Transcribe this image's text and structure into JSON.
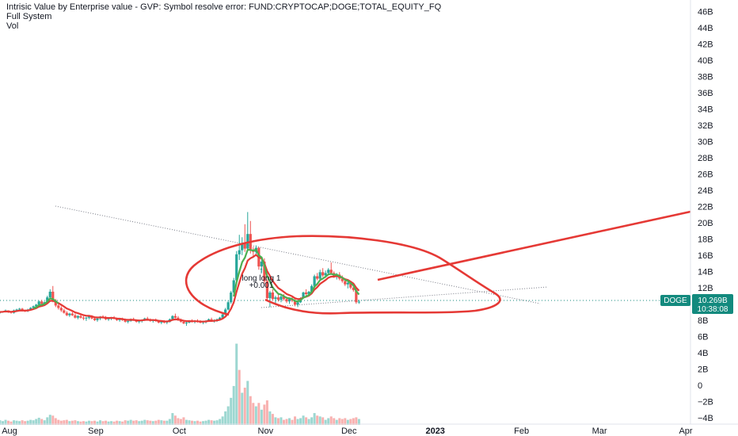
{
  "header": {
    "line1": "Intrisic Value by Enterprise value - GVP: Symbol resolve error: FUND:CRYPTOCAP;DOGE;TOTAL_EQUITY_FQ",
    "line2": "Full System",
    "line3": "Vol"
  },
  "colors": {
    "up": "#26a69a",
    "down": "#ef5350",
    "ma_green": "#4caf50",
    "ma_red": "#e53935",
    "drawing_red": "#e53935",
    "price_tag": "#138a7e",
    "trend_line": "#787b86"
  },
  "price_tag": {
    "symbol": "DOGE",
    "value": "10.269B",
    "time": "10:38:08"
  },
  "signal": {
    "label": "long long 1",
    "value": "+0.001",
    "marker": "↑"
  },
  "chart_data": {
    "type": "candlestick",
    "title": "",
    "y_ticks": [
      "46B",
      "44B",
      "42B",
      "40B",
      "38B",
      "36B",
      "34B",
      "32B",
      "30B",
      "28B",
      "26B",
      "24B",
      "22B",
      "20B",
      "18B",
      "16B",
      "14B",
      "12B",
      "10B",
      "8B",
      "6B",
      "4B",
      "2B",
      "0",
      "−2B",
      "−4B"
    ],
    "y_tick_values": [
      46,
      44,
      42,
      40,
      38,
      36,
      34,
      32,
      30,
      28,
      26,
      24,
      22,
      20,
      18,
      16,
      14,
      12,
      10,
      8,
      6,
      4,
      2,
      0,
      -2,
      -4
    ],
    "ylim": [
      -4.8,
      47.4
    ],
    "x_ticks": [
      {
        "label": "Aug",
        "date": "2022-08-01"
      },
      {
        "label": "Sep",
        "date": "2022-09-01"
      },
      {
        "label": "Oct",
        "date": "2022-10-01"
      },
      {
        "label": "Nov",
        "date": "2022-11-01"
      },
      {
        "label": "Dec",
        "date": "2022-12-01"
      },
      {
        "label": "2023",
        "date": "2023-01-01",
        "bold": true
      },
      {
        "label": "Feb",
        "date": "2023-02-01"
      },
      {
        "label": "Mar",
        "date": "2023-03-01"
      },
      {
        "label": "Apr",
        "date": "2023-04-01"
      }
    ],
    "xlim": [
      "2022-08-01",
      "2023-04-01"
    ],
    "start_date": "2022-08-01",
    "candles": [
      [
        8.9,
        9.0,
        8.8,
        9.0
      ],
      [
        9.0,
        9.1,
        8.9,
        9.1
      ],
      [
        9.1,
        9.3,
        9.0,
        9.2
      ],
      [
        9.2,
        9.2,
        8.9,
        9.0
      ],
      [
        9.0,
        9.1,
        8.8,
        8.9
      ],
      [
        8.9,
        9.3,
        8.8,
        9.2
      ],
      [
        9.2,
        9.4,
        9.0,
        9.3
      ],
      [
        9.3,
        9.5,
        9.2,
        9.4
      ],
      [
        9.4,
        9.5,
        9.1,
        9.2
      ],
      [
        9.2,
        9.3,
        9.0,
        9.1
      ],
      [
        9.1,
        9.4,
        9.0,
        9.3
      ],
      [
        9.3,
        9.6,
        9.2,
        9.5
      ],
      [
        9.5,
        9.8,
        9.3,
        9.7
      ],
      [
        9.7,
        10.0,
        9.5,
        9.9
      ],
      [
        9.9,
        10.4,
        9.8,
        10.3
      ],
      [
        10.3,
        10.5,
        9.9,
        10.0
      ],
      [
        10.0,
        10.3,
        9.8,
        10.2
      ],
      [
        10.2,
        11.0,
        10.1,
        10.8
      ],
      [
        10.8,
        11.8,
        10.6,
        11.5
      ],
      [
        11.5,
        12.2,
        10.2,
        10.4
      ],
      [
        10.4,
        10.6,
        9.6,
        9.8
      ],
      [
        9.8,
        10.0,
        9.3,
        9.5
      ],
      [
        9.5,
        9.7,
        9.0,
        9.2
      ],
      [
        9.2,
        9.4,
        8.8,
        8.9
      ],
      [
        8.9,
        9.1,
        8.5,
        8.6
      ],
      [
        8.6,
        8.9,
        8.4,
        8.8
      ],
      [
        8.8,
        9.0,
        8.5,
        8.6
      ],
      [
        8.6,
        8.8,
        8.2,
        8.3
      ],
      [
        8.3,
        8.6,
        8.1,
        8.5
      ],
      [
        8.5,
        8.7,
        8.2,
        8.3
      ],
      [
        8.3,
        8.5,
        8.0,
        8.2
      ],
      [
        8.2,
        8.4,
        7.9,
        8.3
      ],
      [
        8.3,
        8.6,
        8.1,
        8.5
      ],
      [
        8.5,
        8.6,
        8.1,
        8.2
      ],
      [
        8.2,
        8.4,
        7.9,
        8.0
      ],
      [
        8.0,
        8.3,
        7.8,
        8.2
      ],
      [
        8.2,
        8.5,
        8.0,
        8.4
      ],
      [
        8.4,
        8.6,
        8.2,
        8.3
      ],
      [
        8.3,
        8.5,
        8.0,
        8.1
      ],
      [
        8.1,
        8.3,
        7.9,
        8.2
      ],
      [
        8.2,
        8.4,
        8.0,
        8.3
      ],
      [
        8.3,
        8.5,
        8.1,
        8.2
      ],
      [
        8.2,
        8.3,
        7.9,
        8.0
      ],
      [
        8.0,
        8.2,
        7.8,
        8.1
      ],
      [
        8.1,
        8.3,
        7.9,
        8.0
      ],
      [
        8.0,
        8.2,
        7.7,
        7.8
      ],
      [
        7.8,
        8.0,
        7.6,
        7.9
      ],
      [
        7.9,
        8.2,
        7.8,
        8.1
      ],
      [
        8.1,
        8.3,
        7.9,
        8.0
      ],
      [
        8.0,
        8.1,
        7.7,
        7.8
      ],
      [
        7.8,
        8.0,
        7.6,
        7.9
      ],
      [
        7.9,
        8.1,
        7.7,
        8.0
      ],
      [
        8.0,
        8.3,
        7.9,
        8.2
      ],
      [
        8.2,
        8.4,
        8.0,
        8.1
      ],
      [
        8.1,
        8.2,
        7.8,
        7.9
      ],
      [
        7.9,
        8.1,
        7.7,
        8.0
      ],
      [
        8.0,
        8.2,
        7.8,
        7.9
      ],
      [
        7.9,
        8.0,
        7.6,
        7.7
      ],
      [
        7.7,
        7.9,
        7.5,
        7.8
      ],
      [
        7.8,
        8.0,
        7.6,
        7.7
      ],
      [
        7.7,
        7.9,
        7.5,
        7.8
      ],
      [
        7.8,
        8.2,
        7.7,
        8.1
      ],
      [
        8.1,
        8.6,
        8.0,
        8.5
      ],
      [
        8.5,
        8.8,
        8.2,
        8.3
      ],
      [
        8.3,
        8.5,
        7.9,
        8.0
      ],
      [
        8.0,
        8.2,
        7.7,
        7.8
      ],
      [
        7.8,
        8.0,
        7.5,
        7.6
      ],
      [
        7.6,
        7.8,
        7.3,
        7.7
      ],
      [
        7.7,
        8.0,
        7.6,
        7.9
      ],
      [
        7.9,
        8.1,
        7.7,
        7.8
      ],
      [
        7.8,
        8.0,
        7.6,
        7.9
      ],
      [
        7.9,
        8.1,
        7.7,
        7.8
      ],
      [
        7.8,
        8.0,
        7.6,
        7.7
      ],
      [
        7.7,
        7.9,
        7.5,
        7.8
      ],
      [
        7.8,
        8.0,
        7.6,
        7.9
      ],
      [
        7.9,
        8.2,
        7.8,
        8.1
      ],
      [
        8.1,
        8.3,
        7.8,
        7.9
      ],
      [
        7.9,
        8.1,
        7.7,
        8.0
      ],
      [
        8.0,
        8.2,
        7.8,
        8.1
      ],
      [
        8.1,
        8.4,
        8.0,
        8.3
      ],
      [
        8.3,
        8.8,
        8.2,
        8.7
      ],
      [
        8.7,
        9.5,
        8.6,
        9.3
      ],
      [
        9.3,
        10.4,
        9.2,
        10.2
      ],
      [
        10.2,
        11.6,
        10.0,
        11.4
      ],
      [
        11.4,
        13.2,
        11.2,
        12.9
      ],
      [
        12.9,
        16.5,
        12.6,
        16.1
      ],
      [
        16.1,
        18.5,
        15.4,
        16.6
      ],
      [
        16.6,
        18.2,
        16.0,
        17.5
      ],
      [
        17.5,
        19.8,
        16.4,
        16.8
      ],
      [
        16.8,
        21.3,
        16.5,
        18.6
      ],
      [
        18.6,
        20.2,
        16.2,
        16.6
      ],
      [
        16.6,
        17.0,
        15.8,
        16.4
      ],
      [
        16.4,
        17.2,
        16.0,
        16.9
      ],
      [
        16.9,
        17.0,
        14.2,
        14.6
      ],
      [
        14.6,
        15.5,
        13.8,
        15.2
      ],
      [
        15.2,
        15.6,
        12.5,
        12.8
      ],
      [
        12.8,
        13.0,
        10.4,
        10.7
      ],
      [
        10.7,
        11.6,
        9.6,
        11.4
      ],
      [
        11.4,
        11.8,
        10.4,
        10.6
      ],
      [
        10.6,
        11.0,
        10.0,
        10.8
      ],
      [
        10.8,
        11.2,
        10.3,
        10.5
      ],
      [
        10.5,
        11.0,
        10.2,
        10.9
      ],
      [
        10.9,
        11.2,
        10.4,
        10.6
      ],
      [
        10.6,
        10.9,
        10.1,
        10.3
      ],
      [
        10.3,
        10.7,
        10.0,
        10.6
      ],
      [
        10.6,
        10.9,
        10.2,
        10.4
      ],
      [
        10.4,
        10.6,
        9.7,
        9.9
      ],
      [
        9.9,
        10.3,
        9.6,
        10.2
      ],
      [
        10.2,
        10.8,
        10.1,
        10.7
      ],
      [
        10.7,
        11.5,
        10.6,
        11.4
      ],
      [
        11.4,
        11.8,
        11.0,
        11.2
      ],
      [
        11.2,
        11.6,
        10.9,
        11.5
      ],
      [
        11.5,
        12.4,
        11.3,
        12.2
      ],
      [
        12.2,
        13.6,
        12.1,
        13.4
      ],
      [
        13.4,
        13.8,
        12.9,
        13.1
      ],
      [
        13.1,
        14.2,
        13.0,
        13.9
      ],
      [
        13.9,
        14.4,
        13.3,
        13.5
      ],
      [
        13.5,
        14.1,
        13.2,
        13.8
      ],
      [
        13.8,
        14.4,
        13.5,
        14.2
      ],
      [
        14.2,
        15.1,
        13.6,
        13.8
      ],
      [
        13.8,
        14.0,
        13.2,
        13.4
      ],
      [
        13.4,
        13.8,
        13.0,
        13.6
      ],
      [
        13.6,
        13.9,
        12.9,
        13.1
      ],
      [
        13.1,
        13.5,
        12.6,
        12.8
      ],
      [
        12.8,
        13.0,
        12.2,
        12.4
      ],
      [
        12.4,
        12.8,
        11.9,
        12.6
      ],
      [
        12.6,
        12.8,
        11.8,
        12.0
      ],
      [
        12.0,
        12.3,
        11.5,
        11.7
      ],
      [
        11.7,
        11.9,
        10.0,
        10.2
      ],
      [
        10.2,
        10.5,
        10.0,
        10.27
      ]
    ],
    "volume": [
      [
        0.55,
        1
      ],
      [
        0.45,
        1
      ],
      [
        0.6,
        1
      ],
      [
        0.5,
        0
      ],
      [
        0.4,
        0
      ],
      [
        0.55,
        1
      ],
      [
        0.5,
        1
      ],
      [
        0.45,
        1
      ],
      [
        0.55,
        0
      ],
      [
        0.45,
        0
      ],
      [
        0.5,
        1
      ],
      [
        0.6,
        1
      ],
      [
        0.55,
        1
      ],
      [
        0.7,
        1
      ],
      [
        0.85,
        1
      ],
      [
        0.7,
        0
      ],
      [
        0.55,
        1
      ],
      [
        0.9,
        1
      ],
      [
        1.2,
        1
      ],
      [
        1.1,
        0
      ],
      [
        0.8,
        0
      ],
      [
        0.6,
        0
      ],
      [
        0.5,
        0
      ],
      [
        0.55,
        0
      ],
      [
        0.6,
        0
      ],
      [
        0.45,
        1
      ],
      [
        0.5,
        0
      ],
      [
        0.55,
        0
      ],
      [
        0.45,
        1
      ],
      [
        0.4,
        0
      ],
      [
        0.45,
        0
      ],
      [
        0.4,
        1
      ],
      [
        0.5,
        1
      ],
      [
        0.45,
        0
      ],
      [
        0.5,
        0
      ],
      [
        0.4,
        1
      ],
      [
        0.55,
        1
      ],
      [
        0.45,
        0
      ],
      [
        0.5,
        0
      ],
      [
        0.4,
        1
      ],
      [
        0.45,
        1
      ],
      [
        0.4,
        0
      ],
      [
        0.5,
        0
      ],
      [
        0.45,
        1
      ],
      [
        0.4,
        0
      ],
      [
        0.55,
        0
      ],
      [
        0.5,
        1
      ],
      [
        0.6,
        1
      ],
      [
        0.5,
        0
      ],
      [
        0.55,
        0
      ],
      [
        0.45,
        1
      ],
      [
        0.5,
        1
      ],
      [
        0.6,
        1
      ],
      [
        0.55,
        0
      ],
      [
        0.5,
        0
      ],
      [
        0.45,
        1
      ],
      [
        0.5,
        0
      ],
      [
        0.6,
        0
      ],
      [
        0.55,
        1
      ],
      [
        0.5,
        0
      ],
      [
        0.5,
        1
      ],
      [
        0.7,
        1
      ],
      [
        1.4,
        1
      ],
      [
        1.1,
        0
      ],
      [
        0.8,
        0
      ],
      [
        0.7,
        0
      ],
      [
        0.9,
        0
      ],
      [
        0.6,
        1
      ],
      [
        0.55,
        1
      ],
      [
        0.5,
        0
      ],
      [
        0.45,
        1
      ],
      [
        0.5,
        0
      ],
      [
        0.4,
        0
      ],
      [
        0.45,
        1
      ],
      [
        0.5,
        1
      ],
      [
        0.6,
        1
      ],
      [
        0.55,
        0
      ],
      [
        0.5,
        1
      ],
      [
        0.55,
        1
      ],
      [
        0.7,
        1
      ],
      [
        1.0,
        1
      ],
      [
        1.6,
        1
      ],
      [
        2.2,
        1
      ],
      [
        3.2,
        1
      ],
      [
        4.6,
        1
      ],
      [
        9.6,
        1
      ],
      [
        6.5,
        0
      ],
      [
        3.8,
        1
      ],
      [
        4.4,
        0
      ],
      [
        5.2,
        1
      ],
      [
        3.4,
        0
      ],
      [
        2.6,
        0
      ],
      [
        2.2,
        1
      ],
      [
        2.6,
        0
      ],
      [
        1.8,
        1
      ],
      [
        2.4,
        0
      ],
      [
        2.9,
        0
      ],
      [
        1.6,
        1
      ],
      [
        1.3,
        0
      ],
      [
        0.9,
        1
      ],
      [
        0.8,
        0
      ],
      [
        0.9,
        1
      ],
      [
        0.6,
        0
      ],
      [
        0.7,
        0
      ],
      [
        0.8,
        1
      ],
      [
        0.6,
        0
      ],
      [
        1.0,
        0
      ],
      [
        0.7,
        1
      ],
      [
        0.8,
        1
      ],
      [
        1.1,
        1
      ],
      [
        0.9,
        0
      ],
      [
        0.7,
        1
      ],
      [
        0.9,
        1
      ],
      [
        1.4,
        1
      ],
      [
        1.1,
        0
      ],
      [
        1.0,
        1
      ],
      [
        0.9,
        0
      ],
      [
        0.6,
        1
      ],
      [
        0.8,
        1
      ],
      [
        1.0,
        0
      ],
      [
        0.8,
        0
      ],
      [
        0.6,
        1
      ],
      [
        0.8,
        0
      ],
      [
        0.7,
        0
      ],
      [
        0.8,
        0
      ],
      [
        0.6,
        1
      ],
      [
        0.7,
        0
      ],
      [
        0.8,
        0
      ],
      [
        0.9,
        0
      ],
      [
        0.7,
        1
      ]
    ]
  }
}
